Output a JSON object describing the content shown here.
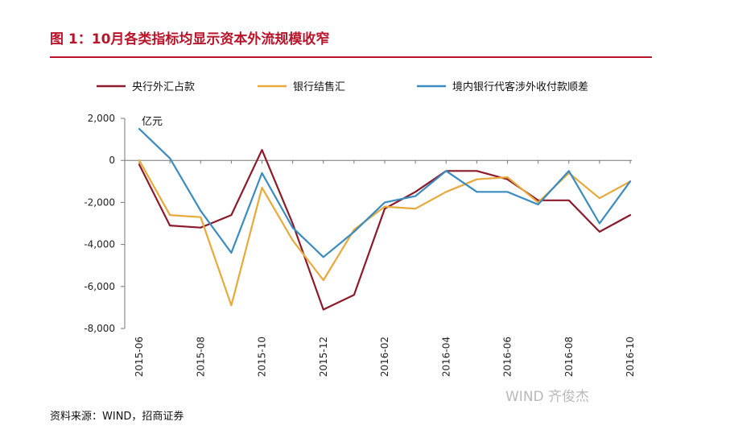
{
  "figure": {
    "title": "图 1：10月各类指标均显示资本外流规模收窄",
    "source": "资料来源：WIND，招商证券",
    "watermark": "WIND 齐俊杰"
  },
  "chart_data": {
    "type": "line",
    "unit_label": "亿元",
    "x": [
      "2015-06",
      "2015-07",
      "2015-08",
      "2015-09",
      "2015-10",
      "2015-11",
      "2015-12",
      "2016-01",
      "2016-02",
      "2016-03",
      "2016-04",
      "2016-05",
      "2016-06",
      "2016-07",
      "2016-08",
      "2016-09",
      "2016-10"
    ],
    "x_tick_labels": [
      "2015-06",
      "2015-08",
      "2015-10",
      "2015-12",
      "2016-02",
      "2016-04",
      "2016-06",
      "2016-08",
      "2016-10"
    ],
    "ylim": [
      -8000,
      2000
    ],
    "y_ticks": [
      2000,
      0,
      -2000,
      -4000,
      -6000,
      -8000
    ],
    "y_tick_labels": [
      "2,000",
      "0",
      "-2,000",
      "-4,000",
      "-6,000",
      "-8,000"
    ],
    "grid": false,
    "legend_position": "top",
    "series": [
      {
        "name": "央行外汇占款",
        "color": "#8b1a2b",
        "values": [
          -200,
          -3100,
          -3200,
          -2600,
          500,
          -3000,
          -7100,
          -6400,
          -2300,
          -1500,
          -500,
          -500,
          -900,
          -1900,
          -1900,
          -3400,
          -2600
        ]
      },
      {
        "name": "银行结售汇",
        "color": "#e8a93a",
        "values": [
          0,
          -2600,
          -2700,
          -6900,
          -1300,
          -3800,
          -5700,
          -3300,
          -2200,
          -2300,
          -1500,
          -900,
          -800,
          -2000,
          -600,
          -1800,
          -1000
        ]
      },
      {
        "name": "境内银行代客涉外收付款顺差",
        "color": "#3a8bc0",
        "values": [
          1500,
          100,
          -2400,
          -4400,
          -600,
          -3200,
          -4600,
          -3400,
          -2000,
          -1700,
          -500,
          -1500,
          -1500,
          -2100,
          -500,
          -3000,
          -1000
        ]
      }
    ]
  }
}
